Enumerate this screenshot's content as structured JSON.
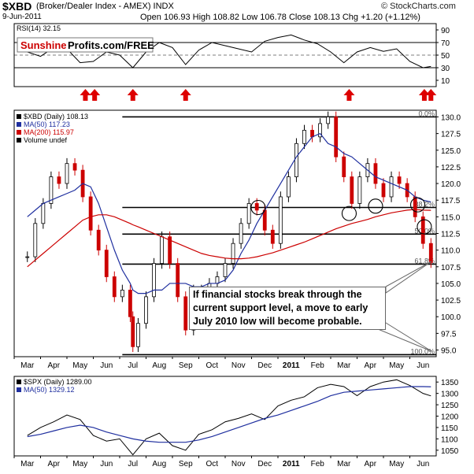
{
  "header": {
    "symbol": "$XBD",
    "name": "(Broker/Dealer Index - AMEX) INDX",
    "date": "9-Jun-2011",
    "ohlc": "Open 106.93  High 108.82  Low 106.78  Close 108.13  Chg +1.20 (+1.12%)",
    "source": "© StockCharts.com"
  },
  "brand": {
    "part1": "Sunshine",
    "part2": "Profits.com/FREE"
  },
  "colors": {
    "price_up": "#000000",
    "price_down": "#cc0000",
    "ma50": "#1f2f9f",
    "ma200": "#cc0000",
    "rsi": "#000000",
    "spx": "#000000",
    "spx_ma50": "#1f2f9f",
    "arrow": "#dd0000",
    "brand_red": "#cc0000"
  },
  "chart_data": [
    {
      "type": "line",
      "name": "rsi-panel",
      "legend": "RSI(14) 32.15",
      "yticks": [
        10,
        30,
        50,
        70,
        90
      ],
      "ylim": [
        0,
        100
      ],
      "hlines": [
        30,
        50,
        70
      ],
      "arrow_markers_month_index": [
        2.2,
        2.55,
        4.0,
        6.0,
        12.2,
        15.05,
        15.3
      ],
      "x_month_index": [
        0,
        0.5,
        1.0,
        1.5,
        2.0,
        2.5,
        3.0,
        3.5,
        4.0,
        4.5,
        5.0,
        5.5,
        6.0,
        6.5,
        7.0,
        7.5,
        8.0,
        8.5,
        9.0,
        9.5,
        10.0,
        10.5,
        11.0,
        11.5,
        12.0,
        12.5,
        13.0,
        13.5,
        14.0,
        14.5,
        15.0,
        15.3
      ],
      "values": [
        55,
        48,
        62,
        60,
        38,
        40,
        55,
        50,
        30,
        55,
        70,
        62,
        35,
        58,
        70,
        65,
        60,
        55,
        72,
        78,
        82,
        74,
        68,
        55,
        38,
        55,
        62,
        56,
        60,
        40,
        30,
        32
      ]
    },
    {
      "type": "bar",
      "name": "xbd-price-panel",
      "legend": [
        "$XBD (Daily) 108.13",
        "MA(50) 117.23",
        "MA(200) 115.97",
        "Volume undef"
      ],
      "yticks": [
        95.0,
        97.5,
        100.0,
        102.5,
        105.0,
        107.5,
        110.0,
        112.5,
        115.0,
        117.5,
        120.0,
        122.5,
        125.0,
        127.5,
        130.0
      ],
      "ylim": [
        94,
        131
      ],
      "xlabels": [
        "Mar",
        "Apr",
        "May",
        "Jun",
        "Jul",
        "Aug",
        "Sep",
        "Oct",
        "Nov",
        "Dec",
        "2011",
        "Feb",
        "Mar",
        "Apr",
        "May",
        "Jun"
      ],
      "fib_levels": [
        {
          "label": "0.0%",
          "value": 130.0
        },
        {
          "label": "38.2%",
          "value": 116.4
        },
        {
          "label": "50.0%",
          "value": 112.4
        },
        {
          "label": "61.8%",
          "value": 107.9
        },
        {
          "label": "100.0%",
          "value": 94.3
        }
      ],
      "circles": [
        {
          "x": 8.75,
          "y": 116.4
        },
        {
          "x": 12.2,
          "y": 115.5
        },
        {
          "x": 13.2,
          "y": 116.6
        },
        {
          "x": 14.8,
          "y": 116.8
        },
        {
          "x": 15.05,
          "y": 113.5
        }
      ],
      "annotation": "If financial stocks break through the current support level, a move to early July 2010 low will become probable.",
      "x_month_index": [
        0,
        0.3,
        0.6,
        0.9,
        1.2,
        1.5,
        1.8,
        2.1,
        2.4,
        2.7,
        3.0,
        3.3,
        3.6,
        3.9,
        4.0,
        4.2,
        4.5,
        4.8,
        5.1,
        5.4,
        5.7,
        6.0,
        6.3,
        6.6,
        6.9,
        7.2,
        7.5,
        7.8,
        8.1,
        8.4,
        8.7,
        9.0,
        9.3,
        9.6,
        9.9,
        10.2,
        10.5,
        10.8,
        11.1,
        11.4,
        11.7,
        12.0,
        12.3,
        12.6,
        12.9,
        13.2,
        13.5,
        13.8,
        14.1,
        14.4,
        14.7,
        15.0,
        15.3
      ],
      "close": [
        109,
        114,
        117,
        121,
        120,
        123,
        122,
        118,
        113,
        110,
        106,
        103,
        104,
        100,
        95.5,
        99,
        103,
        108,
        112,
        108,
        103,
        98,
        104,
        104,
        105,
        106,
        108,
        111,
        114,
        117,
        116,
        113,
        111,
        118,
        121,
        126,
        128,
        127,
        129,
        130,
        124,
        121,
        117,
        121,
        123,
        120,
        118,
        121,
        120,
        118,
        115,
        111,
        108.13
      ],
      "ma50": [
        115,
        116,
        117,
        117.5,
        118,
        118.5,
        119,
        120,
        119.5,
        117,
        113.5,
        110,
        107,
        105,
        104,
        103.5,
        103.5,
        104,
        104,
        105,
        105,
        105,
        104.5,
        104.5,
        105,
        105,
        105.5,
        107,
        109.5,
        111.5,
        114,
        116,
        118,
        120,
        122,
        124,
        125.5,
        127,
        127.5,
        126,
        125.5,
        124.5,
        124,
        123,
        122,
        121,
        120.5,
        120,
        119.5,
        119,
        118,
        117.5,
        117.23
      ],
      "ma200": [
        107.5,
        108.5,
        109.5,
        110.5,
        111.5,
        112.5,
        113.5,
        114.5,
        115,
        115.3,
        115.3,
        115,
        114.5,
        114,
        113.8,
        113.5,
        113,
        112.5,
        112,
        111.5,
        111,
        110.5,
        110,
        109.5,
        109.2,
        109,
        108.8,
        108.7,
        108.7,
        108.8,
        109,
        109.3,
        109.6,
        110,
        110.4,
        110.8,
        111.2,
        111.7,
        112.2,
        112.7,
        113.2,
        113.6,
        114,
        114.3,
        114.6,
        115,
        115.3,
        115.6,
        115.8,
        116,
        116.1,
        116.0,
        115.97
      ]
    },
    {
      "type": "line",
      "name": "spx-panel",
      "legend": [
        "$SPX (Daily) 1289.00",
        "MA(50) 1329.12"
      ],
      "yticks": [
        1050,
        1100,
        1150,
        1200,
        1250,
        1300,
        1350
      ],
      "ylim": [
        1025,
        1375
      ],
      "xlabels": [
        "Mar",
        "Apr",
        "May",
        "Jun",
        "Jul",
        "Aug",
        "Sep",
        "Oct",
        "Nov",
        "Dec",
        "2011",
        "Feb",
        "Mar",
        "Apr",
        "May",
        "Jun"
      ],
      "x_month_index": [
        0,
        0.5,
        1.0,
        1.5,
        2.0,
        2.5,
        3.0,
        3.5,
        4.0,
        4.5,
        5.0,
        5.5,
        6.0,
        6.5,
        7.0,
        7.5,
        8.0,
        8.5,
        9.0,
        9.5,
        10.0,
        10.5,
        11.0,
        11.5,
        12.0,
        12.5,
        13.0,
        13.5,
        14.0,
        14.5,
        15.0,
        15.3
      ],
      "close": [
        1115,
        1150,
        1175,
        1205,
        1185,
        1115,
        1090,
        1100,
        1030,
        1100,
        1125,
        1070,
        1050,
        1120,
        1140,
        1175,
        1190,
        1210,
        1185,
        1245,
        1270,
        1285,
        1325,
        1340,
        1330,
        1290,
        1330,
        1350,
        1360,
        1335,
        1300,
        1289
      ],
      "ma50": [
        1110,
        1120,
        1135,
        1150,
        1160,
        1150,
        1130,
        1115,
        1100,
        1090,
        1085,
        1085,
        1085,
        1095,
        1110,
        1130,
        1150,
        1170,
        1190,
        1205,
        1225,
        1245,
        1265,
        1290,
        1305,
        1310,
        1315,
        1320,
        1325,
        1330,
        1330,
        1329
      ]
    }
  ]
}
